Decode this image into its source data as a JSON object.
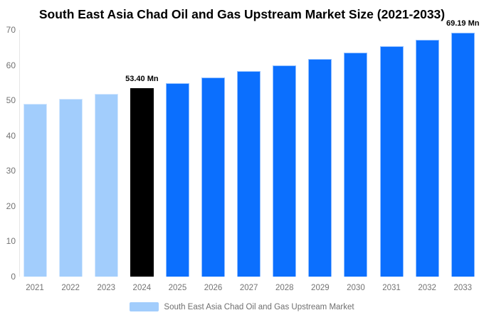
{
  "title": "South East Asia Chad Oil and Gas Upstream Market Size (2021-2033)",
  "legend": {
    "label": "South East Asia Chad Oil and Gas Upstream Market",
    "swatch_color": "#a2cdfc"
  },
  "colors": {
    "past_bar": "#a2cdfc",
    "current_bar": "#000000",
    "forecast_bar": "#0b6ffe",
    "axis_text": "#737373",
    "data_label_text": "#000000",
    "axis_line": "#e6e6e6",
    "background": "#ffffff"
  },
  "chart_data": {
    "type": "bar",
    "title": "South East Asia Chad Oil and Gas Upstream Market Size (2021-2033)",
    "categories": [
      "2021",
      "2022",
      "2023",
      "2024",
      "2025",
      "2026",
      "2027",
      "2028",
      "2029",
      "2030",
      "2031",
      "2032",
      "2033"
    ],
    "values": [
      48.98,
      50.41,
      51.89,
      53.4,
      54.96,
      56.56,
      58.22,
      59.92,
      61.67,
      63.47,
      65.32,
      67.23,
      69.19
    ],
    "bar_roles": [
      "past",
      "past",
      "past",
      "current",
      "forecast",
      "forecast",
      "forecast",
      "forecast",
      "forecast",
      "forecast",
      "forecast",
      "forecast",
      "forecast"
    ],
    "unit": "Mn",
    "xlabel": "",
    "ylabel": "",
    "ylim": [
      0,
      70
    ],
    "yticks": [
      0,
      10,
      20,
      30,
      40,
      50,
      60,
      70
    ],
    "grid": false,
    "legend_position": "bottom",
    "legend_entries": [
      "South East Asia Chad Oil and Gas Upstream Market"
    ],
    "data_labels": [
      {
        "category": "2024",
        "text": "53.40 Mn"
      },
      {
        "category": "2033",
        "text": "69.19 Mn"
      }
    ]
  }
}
